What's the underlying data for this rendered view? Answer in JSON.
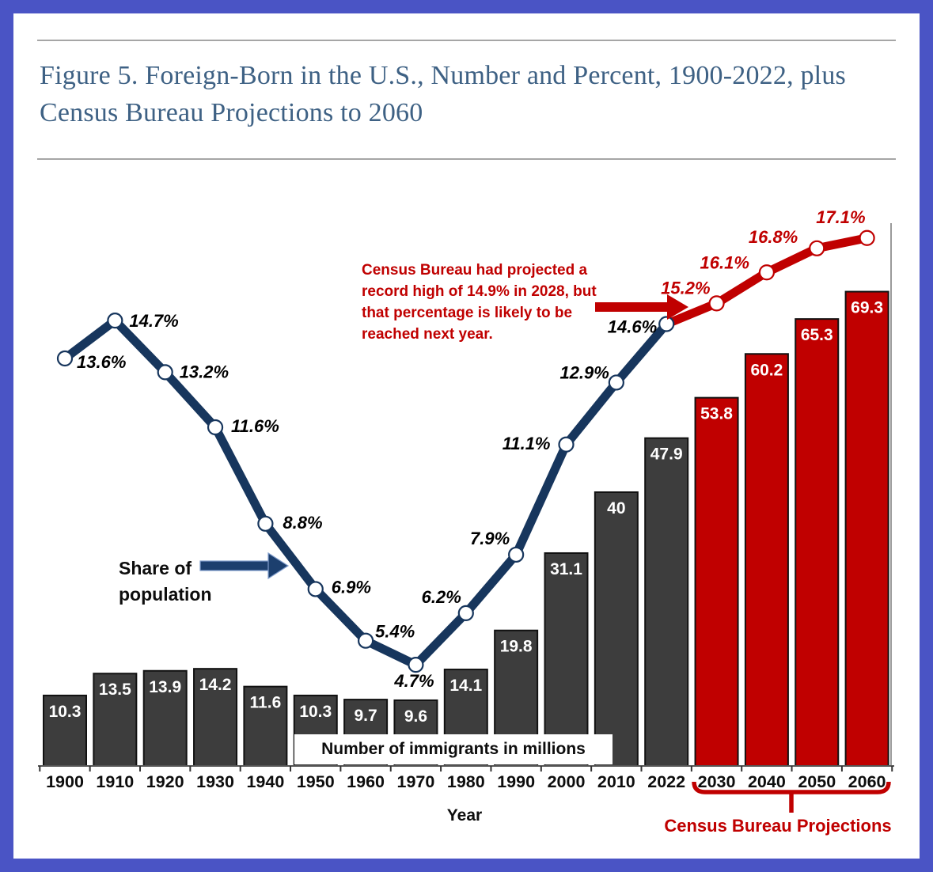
{
  "header": {
    "figure_title": "Figure 5. Foreign-Born in the U.S., Number and Percent, 1900-2022, plus Census Bureau Projections to 2060"
  },
  "theme": {
    "frame": "#4a54c5",
    "title_color": "#3e6184",
    "rule_color": "#a6a6a6"
  },
  "chart_data": {
    "type": "bar+line",
    "title": "Foreign-Born in the U.S., Number and Percent, 1900-2022, plus Census Bureau Projections to 2060",
    "categories": [
      "1900",
      "1910",
      "1920",
      "1930",
      "1940",
      "1950",
      "1960",
      "1970",
      "1980",
      "1990",
      "2000",
      "2010",
      "2022",
      "2030",
      "2040",
      "2050",
      "2060"
    ],
    "x_axis_title": "Year",
    "projection_start_index": 13,
    "series": [
      {
        "name": "Number of immigrants in millions",
        "type": "bar",
        "values": [
          10.3,
          13.5,
          13.9,
          14.2,
          11.6,
          10.3,
          9.7,
          9.6,
          14.1,
          19.8,
          31.1,
          40,
          47.9,
          53.8,
          60.2,
          65.3,
          69.3
        ]
      },
      {
        "name": "Share of population",
        "type": "line",
        "unit": "%",
        "values": [
          13.6,
          14.7,
          13.2,
          11.6,
          8.8,
          6.9,
          5.4,
          4.7,
          6.2,
          7.9,
          11.1,
          12.9,
          14.6,
          15.2,
          16.1,
          16.8,
          17.1
        ]
      }
    ],
    "colors": {
      "bar_historical": "#3d3d3d",
      "bar_projection": "#c00000",
      "bar_border": "#111111",
      "bar_value_label": "#ffffff",
      "line_historical": "#17365d",
      "line_projection": "#c00000",
      "marker_fill": "#ffffff",
      "pct_label_historical": "#000000",
      "pct_label_projection": "#c00000",
      "axis": "#555555"
    },
    "annotations": {
      "bar_series_label": "Number of immigrants in millions",
      "line_series_label": {
        "lines": [
          "Share of",
          "population"
        ]
      },
      "projection_note": {
        "lines": [
          "Census Bureau had projected a",
          "record high of 14.9% in 2028, but",
          "that percentage is likely to be",
          "reached next year."
        ]
      },
      "projection_bracket_label": "Census Bureau Projections"
    },
    "layout_hints": {
      "grid": false,
      "legend": "inline-annotations",
      "bar_axis_min": 0
    }
  }
}
